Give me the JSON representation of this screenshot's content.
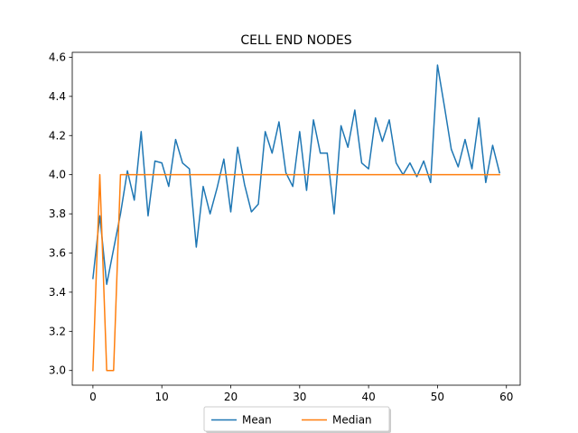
{
  "chart_data": {
    "type": "line",
    "title": "CELL END NODES",
    "xlabel": "",
    "ylabel": "",
    "xlim": [
      -3,
      62
    ],
    "ylim": [
      2.925,
      4.625
    ],
    "xticks": [
      0,
      10,
      20,
      30,
      40,
      50,
      60
    ],
    "yticks": [
      3.0,
      3.2,
      3.4,
      3.6,
      3.8,
      4.0,
      4.2,
      4.4,
      4.6
    ],
    "grid": false,
    "legend_placement": "bottom-center, below axes",
    "x": [
      0,
      1,
      2,
      3,
      4,
      5,
      6,
      7,
      8,
      9,
      10,
      11,
      12,
      13,
      14,
      15,
      16,
      17,
      18,
      19,
      20,
      21,
      22,
      23,
      24,
      25,
      26,
      27,
      28,
      29,
      30,
      31,
      32,
      33,
      34,
      35,
      36,
      37,
      38,
      39,
      40,
      41,
      42,
      43,
      44,
      45,
      46,
      47,
      48,
      49,
      50,
      51,
      52,
      53,
      54,
      55,
      56,
      57,
      58,
      59
    ],
    "series": [
      {
        "name": "Mean",
        "color": "#1f77b4",
        "values": [
          3.47,
          3.79,
          3.44,
          3.62,
          3.8,
          4.02,
          3.87,
          4.22,
          3.79,
          4.07,
          4.06,
          3.94,
          4.18,
          4.06,
          4.03,
          3.63,
          3.94,
          3.8,
          3.93,
          4.08,
          3.81,
          4.14,
          3.95,
          3.81,
          3.85,
          4.22,
          4.11,
          4.27,
          4.01,
          3.94,
          4.22,
          3.92,
          4.28,
          4.11,
          4.11,
          3.8,
          4.25,
          4.14,
          4.33,
          4.06,
          4.03,
          4.29,
          4.17,
          4.28,
          4.06,
          4.0,
          4.06,
          3.99,
          4.07,
          3.96,
          4.56,
          4.35,
          4.13,
          4.04,
          4.18,
          4.03,
          4.29,
          3.96,
          4.15,
          4.01
        ]
      },
      {
        "name": "Median",
        "color": "#ff7f0e",
        "values": [
          3.0,
          4.0,
          3.0,
          3.0,
          4.0,
          4.0,
          4.0,
          4.0,
          4.0,
          4.0,
          4.0,
          4.0,
          4.0,
          4.0,
          4.0,
          4.0,
          4.0,
          4.0,
          4.0,
          4.0,
          4.0,
          4.0,
          4.0,
          4.0,
          4.0,
          4.0,
          4.0,
          4.0,
          4.0,
          4.0,
          4.0,
          4.0,
          4.0,
          4.0,
          4.0,
          4.0,
          4.0,
          4.0,
          4.0,
          4.0,
          4.0,
          4.0,
          4.0,
          4.0,
          4.0,
          4.0,
          4.0,
          4.0,
          4.0,
          4.0,
          4.0,
          4.0,
          4.0,
          4.0,
          4.0,
          4.0,
          4.0,
          4.0,
          4.0,
          4.0
        ]
      }
    ]
  }
}
